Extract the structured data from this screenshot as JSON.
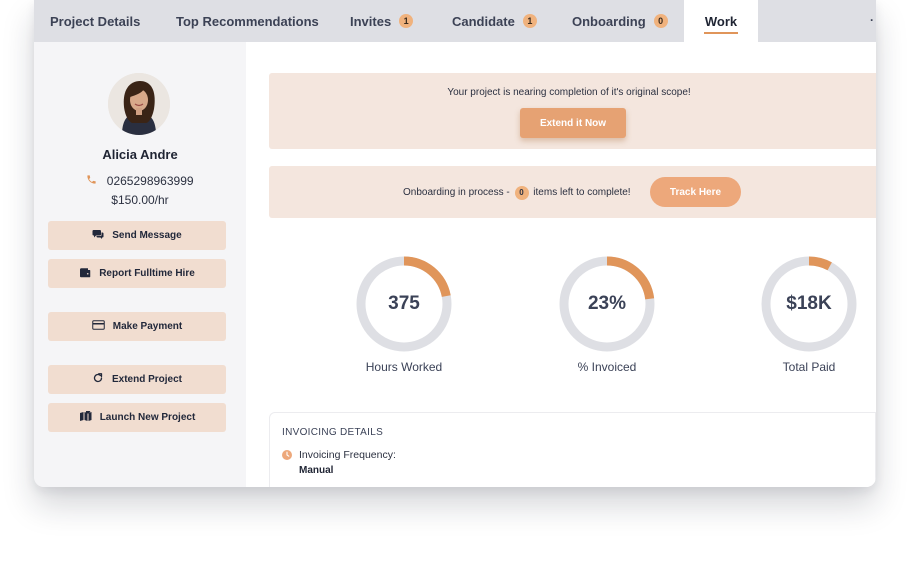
{
  "tabs": [
    {
      "label": "Project Details",
      "count": null
    },
    {
      "label": "Top Recommendations",
      "count": null
    },
    {
      "label": "Invites",
      "count": "1"
    },
    {
      "label": "Candidate",
      "count": "1"
    },
    {
      "label": "Onboarding",
      "count": "0"
    },
    {
      "label": "Work",
      "count": null,
      "active": true
    }
  ],
  "tab_more": "·",
  "profile": {
    "name": "Alicia Andre",
    "phone": "0265298963999",
    "rate": "$150.00/hr"
  },
  "sidebar_buttons": {
    "send_message": "Send Message",
    "report_hire": "Report Fulltime Hire",
    "make_payment": "Make Payment",
    "extend_project": "Extend Project",
    "launch_project": "Launch New Project"
  },
  "banner_scope": {
    "message": "Your project is nearing completion of it's original scope!",
    "button": "Extend it Now"
  },
  "banner_onboarding": {
    "prefix": "Onboarding in process -",
    "count": "0",
    "suffix": "items left to complete!",
    "button": "Track Here"
  },
  "stats": [
    {
      "value": "375",
      "label": "Hours Worked",
      "fraction": 0.22
    },
    {
      "value": "23%",
      "label": "% Invoiced",
      "fraction": 0.23
    },
    {
      "value": "$18K",
      "label": "Total Paid",
      "fraction": 0.08
    }
  ],
  "invoicing": {
    "heading": "INVOICING DETAILS",
    "frequency_label": "Invoicing Frequency:",
    "frequency_value": "Manual"
  },
  "colors": {
    "accent": "#e0955a",
    "banner": "#f4e6de",
    "sidebar_button": "#f1ddd0",
    "gauge_track": "#dedfe4"
  }
}
